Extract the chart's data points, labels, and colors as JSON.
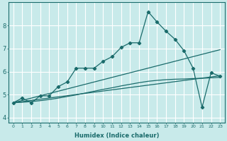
{
  "xlabel": "Humidex (Indice chaleur)",
  "background_color": "#c8eaea",
  "grid_color": "#ffffff",
  "line_color": "#1a6b6b",
  "xlim": [
    -0.5,
    23.5
  ],
  "ylim": [
    3.8,
    9.0
  ],
  "yticks": [
    4,
    5,
    6,
    7,
    8
  ],
  "xticks": [
    0,
    1,
    2,
    3,
    4,
    5,
    6,
    7,
    8,
    9,
    10,
    11,
    12,
    13,
    14,
    15,
    16,
    17,
    18,
    19,
    20,
    21,
    22,
    23
  ],
  "line1_x": [
    0,
    1,
    2,
    3,
    4,
    5,
    6,
    7,
    8,
    9,
    10,
    11,
    12,
    13,
    14,
    15,
    16,
    17,
    18,
    19,
    20,
    21,
    22,
    23
  ],
  "line1_y": [
    4.65,
    4.85,
    4.65,
    4.95,
    4.95,
    5.35,
    5.55,
    6.15,
    6.15,
    6.15,
    6.45,
    6.65,
    7.05,
    7.25,
    7.25,
    8.6,
    8.15,
    7.75,
    7.4,
    6.9,
    6.15,
    4.45,
    5.95,
    5.8
  ],
  "line2_x": [
    0,
    23
  ],
  "line2_y": [
    4.65,
    6.95
  ],
  "line3_x": [
    0,
    23
  ],
  "line3_y": [
    4.65,
    5.82
  ],
  "line4_x": [
    0,
    1,
    2,
    3,
    4,
    5,
    6,
    7,
    8,
    9,
    10,
    11,
    12,
    13,
    14,
    15,
    16,
    17,
    18,
    19,
    20,
    21,
    22,
    23
  ],
  "line4_y": [
    4.65,
    4.67,
    4.7,
    4.74,
    4.79,
    4.85,
    4.92,
    4.99,
    5.07,
    5.15,
    5.23,
    5.3,
    5.38,
    5.45,
    5.52,
    5.58,
    5.62,
    5.65,
    5.67,
    5.68,
    5.7,
    5.71,
    5.73,
    5.75
  ]
}
